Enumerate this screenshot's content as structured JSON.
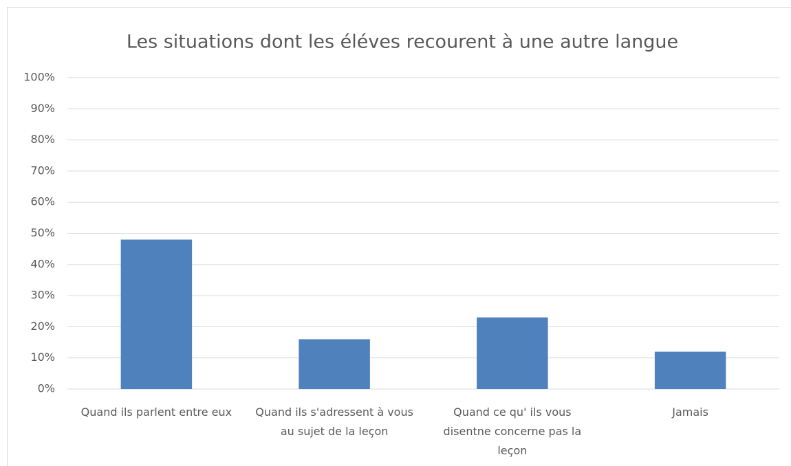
{
  "chart_data": {
    "type": "bar",
    "title": "Les situations dont les éléves recourent à une autre langue",
    "categories": [
      "Quand ils parlent entre eux",
      "Quand ils s'adressent à vous au sujet de la leçon",
      "Quand ce qu' ils vous disentne concerne pas la leçon",
      "Jamais"
    ],
    "values": [
      48,
      16,
      23,
      12
    ],
    "color": "#4f81bd",
    "ylim": [
      0,
      100
    ],
    "yticks": [
      {
        "value": 0,
        "label": "0%"
      },
      {
        "value": 10,
        "label": "10%"
      },
      {
        "value": 20,
        "label": "20%"
      },
      {
        "value": 30,
        "label": "30%"
      },
      {
        "value": 40,
        "label": "40%"
      },
      {
        "value": 50,
        "label": "50%"
      },
      {
        "value": 60,
        "label": "60%"
      },
      {
        "value": 70,
        "label": "70%"
      },
      {
        "value": 80,
        "label": "80%"
      },
      {
        "value": 90,
        "label": "90%"
      },
      {
        "value": 100,
        "label": "100%"
      }
    ],
    "grid": true
  }
}
